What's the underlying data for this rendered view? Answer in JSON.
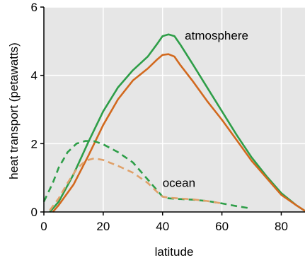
{
  "chart_data": {
    "type": "line",
    "title": "",
    "xlabel": "latitude",
    "ylabel": "heat transport (petawatts)",
    "xlim": [
      0,
      88
    ],
    "ylim": [
      0,
      6
    ],
    "xticks": [
      0,
      20,
      40,
      60,
      80
    ],
    "yticks": [
      0,
      2,
      4,
      6
    ],
    "grid": true,
    "background_color": "#e6e6e6",
    "annotations": [
      {
        "text": "atmosphere",
        "x": 47.5,
        "y": 5.05
      },
      {
        "text": "ocean",
        "x": 40,
        "y": 0.73
      }
    ],
    "series": [
      {
        "color": "#2e9e48",
        "style": "solid",
        "x": [
          2,
          5,
          10,
          15,
          20,
          25,
          30,
          35,
          38,
          40,
          42,
          44,
          46,
          50,
          55,
          60,
          65,
          70,
          75,
          80,
          85,
          88
        ],
        "y": [
          0,
          0.3,
          1.1,
          2.05,
          2.95,
          3.65,
          4.15,
          4.55,
          4.9,
          5.15,
          5.2,
          5.15,
          4.9,
          4.35,
          3.65,
          2.95,
          2.25,
          1.6,
          1.05,
          0.55,
          0.2,
          0.03
        ]
      },
      {
        "color": "#d2691e",
        "style": "solid",
        "x": [
          3,
          5,
          10,
          15,
          20,
          25,
          30,
          35,
          38,
          40,
          42,
          44,
          46,
          50,
          55,
          60,
          65,
          70,
          75,
          80,
          85,
          88
        ],
        "y": [
          0,
          0.2,
          0.8,
          1.65,
          2.55,
          3.3,
          3.85,
          4.2,
          4.45,
          4.6,
          4.62,
          4.55,
          4.3,
          3.85,
          3.25,
          2.7,
          2.1,
          1.5,
          1.0,
          0.5,
          0.2,
          0.03
        ]
      },
      {
        "color": "#2e9e48",
        "style": "dashed",
        "x": [
          0,
          3,
          5,
          8,
          11,
          14,
          17,
          20,
          25,
          30,
          35,
          38,
          40,
          42,
          45,
          50,
          55,
          60,
          65,
          70
        ],
        "y": [
          0.3,
          0.85,
          1.3,
          1.75,
          2.0,
          2.08,
          2.07,
          1.98,
          1.75,
          1.45,
          0.95,
          0.65,
          0.45,
          0.4,
          0.38,
          0.36,
          0.32,
          0.25,
          0.17,
          0.1
        ]
      },
      {
        "color": "#e0a16a",
        "style": "dashed",
        "x": [
          2,
          5,
          8,
          11,
          14,
          17,
          20,
          25,
          30,
          35,
          38,
          40,
          42,
          45,
          50,
          55,
          60
        ],
        "y": [
          0.05,
          0.4,
          0.85,
          1.25,
          1.5,
          1.57,
          1.52,
          1.35,
          1.15,
          0.85,
          0.6,
          0.45,
          0.42,
          0.4,
          0.37,
          0.32,
          0.25
        ]
      }
    ]
  }
}
